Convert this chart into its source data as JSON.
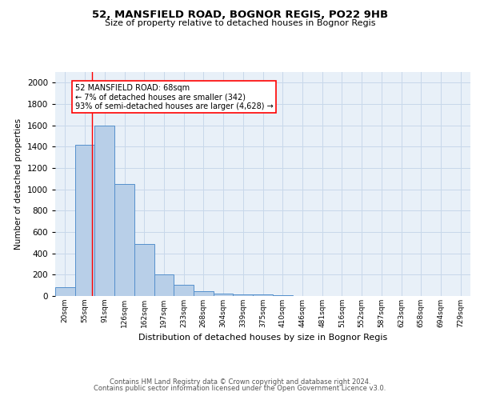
{
  "title1": "52, MANSFIELD ROAD, BOGNOR REGIS, PO22 9HB",
  "title2": "Size of property relative to detached houses in Bognor Regis",
  "xlabel": "Distribution of detached houses by size in Bognor Regis",
  "ylabel": "Number of detached properties",
  "bar_labels": [
    "20sqm",
    "55sqm",
    "91sqm",
    "126sqm",
    "162sqm",
    "197sqm",
    "233sqm",
    "268sqm",
    "304sqm",
    "339sqm",
    "375sqm",
    "410sqm",
    "446sqm",
    "481sqm",
    "516sqm",
    "552sqm",
    "587sqm",
    "623sqm",
    "658sqm",
    "694sqm",
    "729sqm"
  ],
  "bar_values": [
    80,
    1420,
    1600,
    1050,
    490,
    205,
    105,
    45,
    25,
    15,
    15,
    10,
    0,
    0,
    0,
    0,
    0,
    0,
    0,
    0,
    0
  ],
  "bar_color": "#b8cfe8",
  "bar_edge_color": "#5590cc",
  "grid_color": "#c8d8ea",
  "background_color": "#e8f0f8",
  "red_line_x": 1.37,
  "annotation_line1": "52 MANSFIELD ROAD: 68sqm",
  "annotation_line2": "← 7% of detached houses are smaller (342)",
  "annotation_line3": "93% of semi-detached houses are larger (4,628) →",
  "ylim": [
    0,
    2100
  ],
  "yticks": [
    0,
    200,
    400,
    600,
    800,
    1000,
    1200,
    1400,
    1600,
    1800,
    2000
  ],
  "footer1": "Contains HM Land Registry data © Crown copyright and database right 2024.",
  "footer2": "Contains public sector information licensed under the Open Government Licence v3.0."
}
